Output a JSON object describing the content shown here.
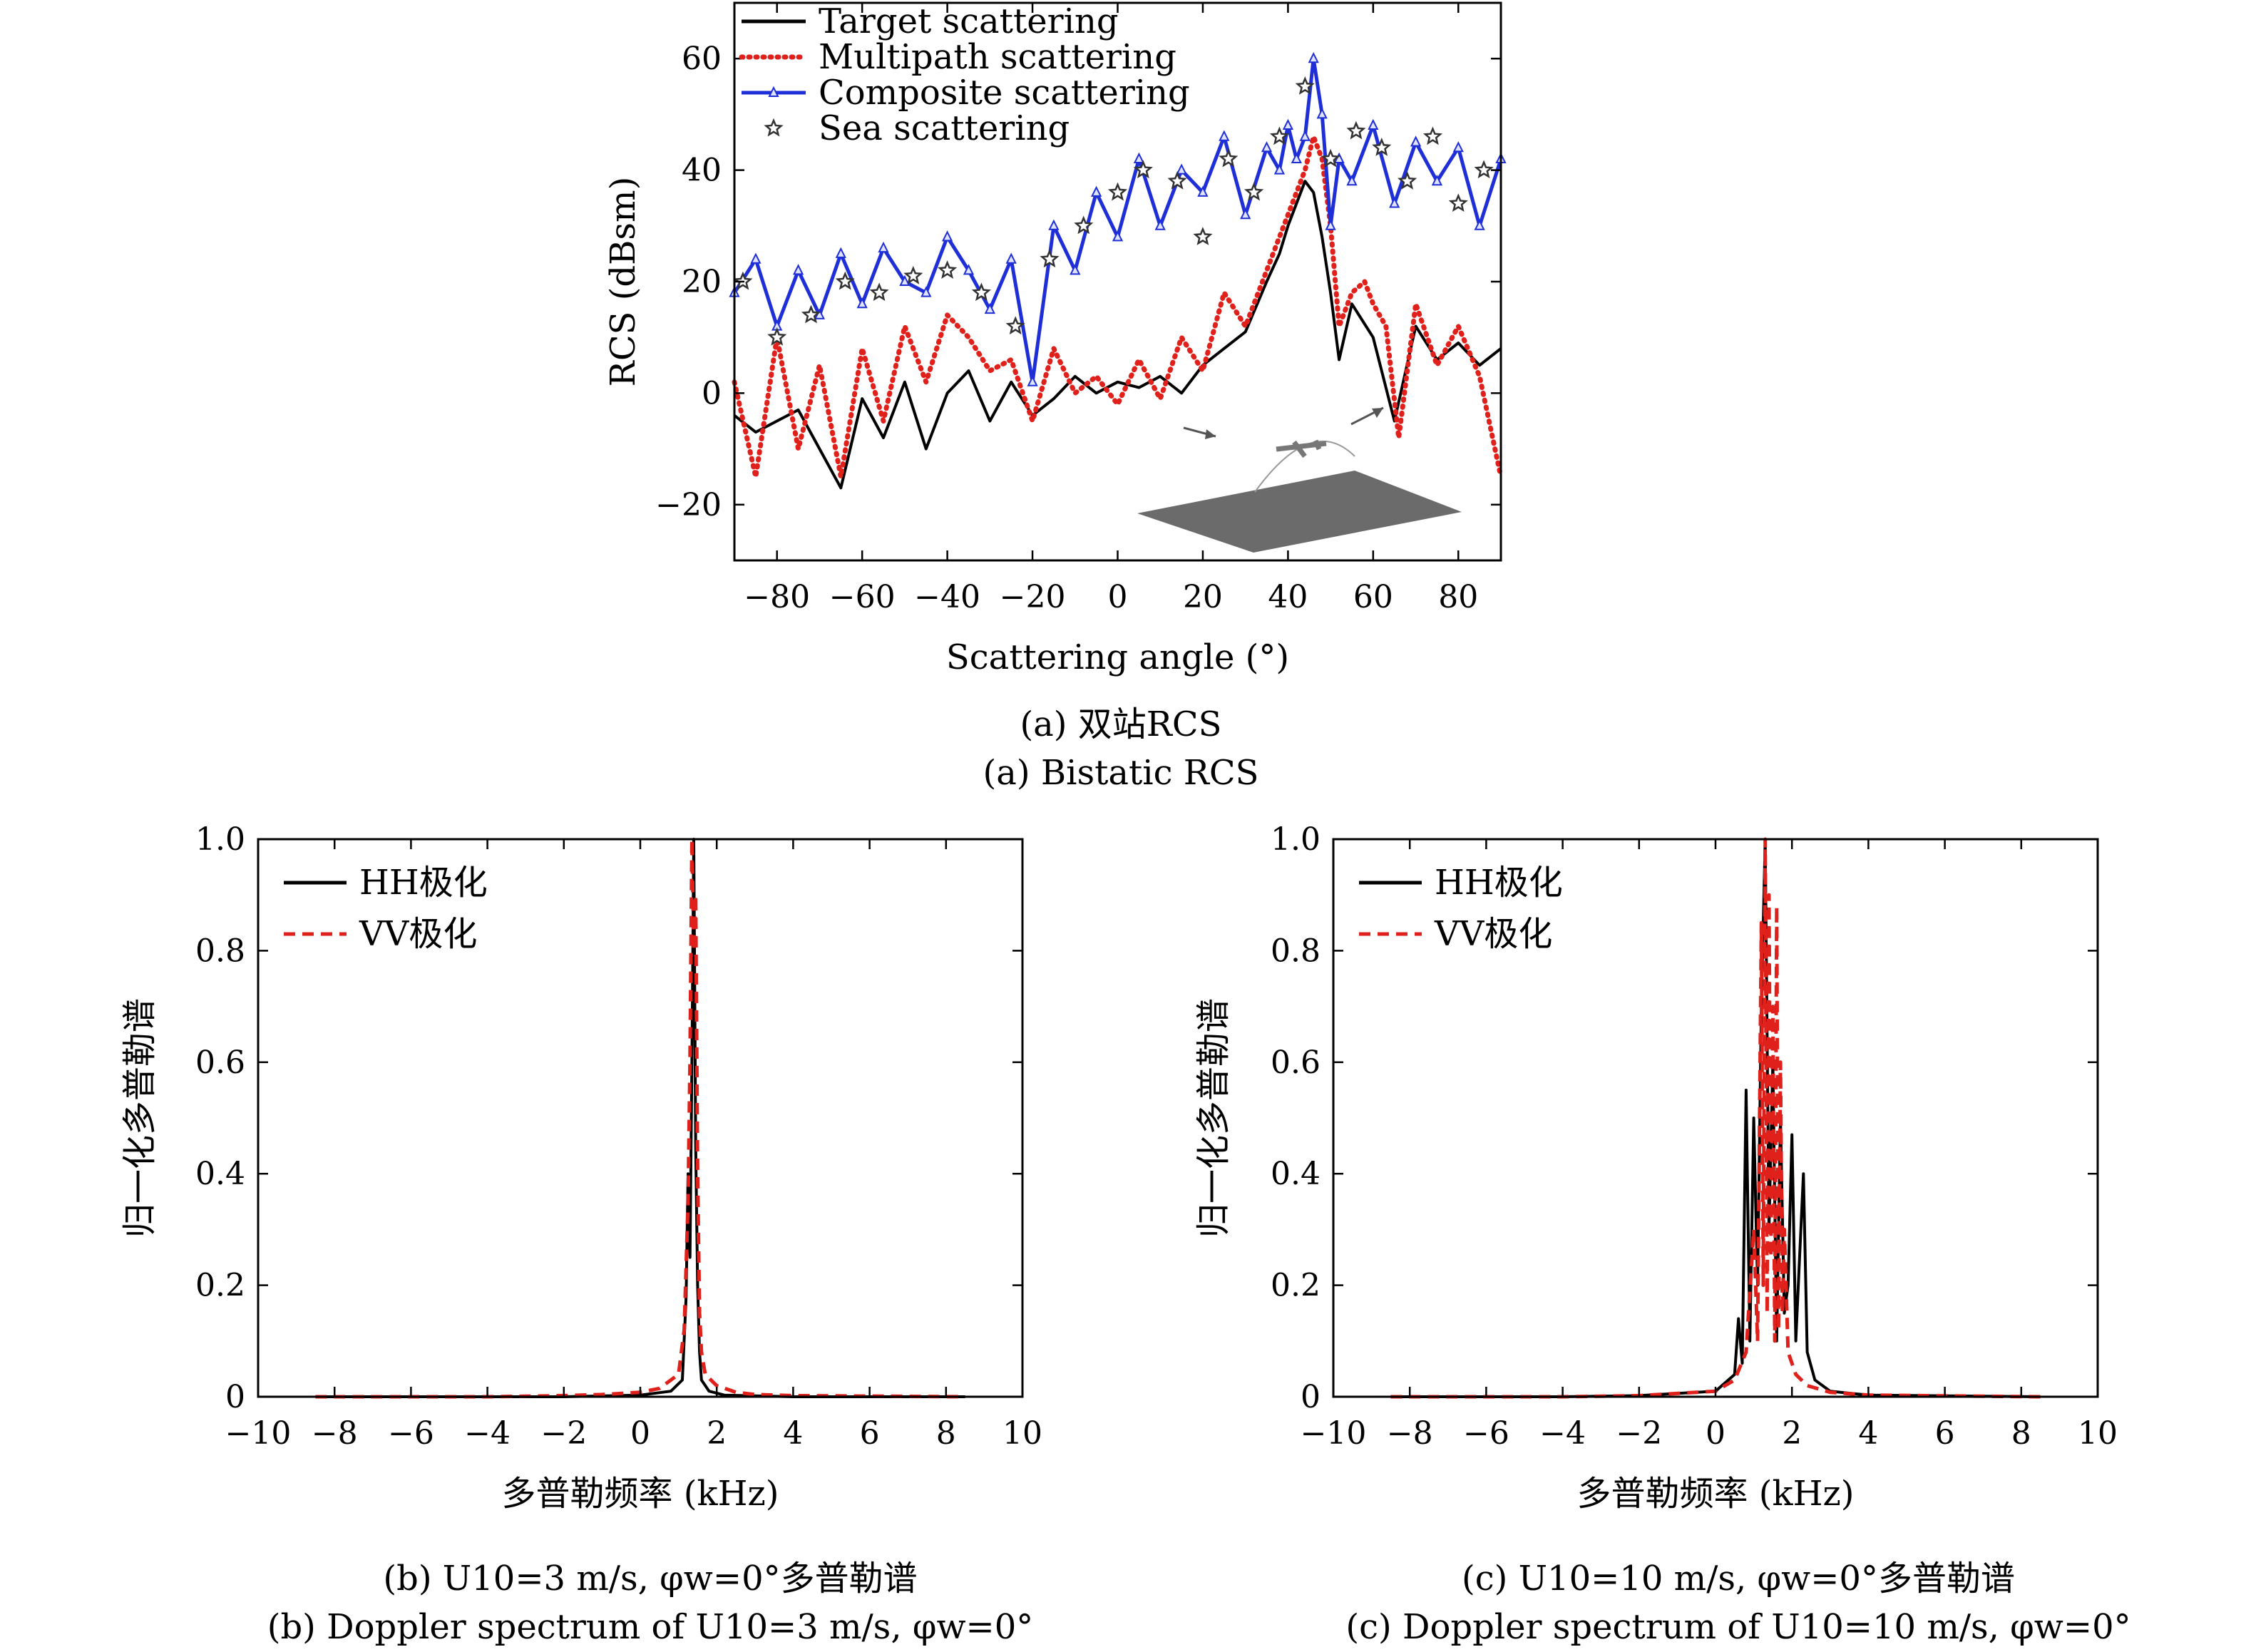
{
  "figure": {
    "captions": {
      "a_cn": "(a) 双站RCS",
      "a_en": "(a) Bistatic RCS",
      "b_cn": "(b) U10=3 m/s, φw=0°多普勒谱",
      "b_en": "(b) Doppler spectrum of U10=3 m/s, φw=0°",
      "c_cn": "(c) U10=10 m/s, φw=0°多普勒谱",
      "c_en": "(c) Doppler spectrum of U10=10 m/s, φw=0°"
    }
  },
  "chart_data": [
    {
      "id": "a",
      "type": "line",
      "xlabel": "Scattering angle (°)",
      "ylabel": "RCS (dBsm)",
      "xlim": [
        -90,
        90
      ],
      "ylim": [
        -30,
        70
      ],
      "xticks": [
        -80,
        -60,
        -40,
        -20,
        0,
        20,
        40,
        60,
        80
      ],
      "yticks": [
        -20,
        0,
        20,
        40,
        60
      ],
      "xtick_labels": [
        "−80",
        "−60",
        "−40",
        "−20",
        "0",
        "20",
        "40",
        "60",
        "80"
      ],
      "ytick_labels": [
        "−20",
        "0",
        "20",
        "40",
        "60"
      ],
      "legend_position": "top-left",
      "inset": "aircraft above sea surface with incident and scattered arrows",
      "series": [
        {
          "name": "Target scattering",
          "color": "#000000",
          "style": "solid",
          "x": [
            -90,
            -85,
            -80,
            -75,
            -70,
            -65,
            -60,
            -55,
            -50,
            -45,
            -40,
            -35,
            -30,
            -25,
            -20,
            -15,
            -10,
            -5,
            0,
            5,
            10,
            15,
            20,
            25,
            30,
            35,
            38,
            40,
            42,
            44,
            46,
            48,
            50,
            52,
            55,
            60,
            65,
            70,
            75,
            80,
            85,
            90
          ],
          "y": [
            -4,
            -7,
            -5,
            -3,
            -10,
            -17,
            -1,
            -8,
            2,
            -10,
            0,
            4,
            -5,
            2,
            -4,
            -1,
            3,
            0,
            2,
            1,
            3,
            0,
            5,
            8,
            11,
            20,
            25,
            30,
            34,
            38,
            36,
            28,
            18,
            6,
            16,
            10,
            -5,
            12,
            6,
            9,
            5,
            8
          ]
        },
        {
          "name": "Multipath scattering",
          "color": "#e0201b",
          "style": "dotted",
          "x": [
            -90,
            -85,
            -80,
            -75,
            -70,
            -65,
            -60,
            -55,
            -50,
            -45,
            -40,
            -35,
            -30,
            -25,
            -20,
            -15,
            -10,
            -5,
            0,
            5,
            10,
            15,
            20,
            25,
            30,
            35,
            38,
            40,
            42,
            44,
            46,
            48,
            50,
            52,
            55,
            58,
            60,
            63,
            66,
            70,
            75,
            80,
            85,
            90
          ],
          "y": [
            2,
            -15,
            10,
            -10,
            5,
            -15,
            8,
            -5,
            12,
            2,
            14,
            10,
            4,
            6,
            -5,
            8,
            0,
            3,
            -2,
            6,
            -1,
            10,
            4,
            18,
            12,
            22,
            28,
            32,
            36,
            40,
            46,
            42,
            30,
            12,
            18,
            20,
            16,
            12,
            -8,
            16,
            5,
            12,
            3,
            -15
          ]
        },
        {
          "name": "Composite scattering",
          "color": "#1f2fd8",
          "style": "solid-marker",
          "x": [
            -90,
            -85,
            -80,
            -75,
            -70,
            -65,
            -60,
            -55,
            -50,
            -45,
            -40,
            -35,
            -30,
            -25,
            -20,
            -15,
            -10,
            -5,
            0,
            5,
            10,
            15,
            20,
            25,
            30,
            35,
            38,
            40,
            42,
            44,
            46,
            48,
            50,
            52,
            55,
            60,
            65,
            70,
            75,
            80,
            85,
            90
          ],
          "y": [
            18,
            24,
            12,
            22,
            14,
            25,
            16,
            26,
            20,
            18,
            28,
            22,
            15,
            24,
            2,
            30,
            22,
            36,
            28,
            42,
            30,
            40,
            36,
            46,
            32,
            44,
            40,
            48,
            42,
            46,
            60,
            50,
            30,
            42,
            38,
            48,
            34,
            45,
            38,
            44,
            30,
            42
          ]
        },
        {
          "name": "Sea scattering",
          "color": "#333333",
          "style": "star-marker",
          "x": [
            -88,
            -80,
            -72,
            -64,
            -56,
            -48,
            -40,
            -32,
            -24,
            -16,
            -8,
            0,
            6,
            14,
            20,
            26,
            32,
            38,
            44,
            50,
            56,
            62,
            68,
            74,
            80,
            86
          ],
          "y": [
            20,
            10,
            14,
            20,
            18,
            21,
            22,
            18,
            12,
            24,
            30,
            36,
            40,
            38,
            28,
            42,
            36,
            46,
            55,
            42,
            47,
            44,
            38,
            46,
            34,
            40
          ]
        }
      ]
    },
    {
      "id": "b",
      "type": "line",
      "xlabel": "多普勒频率 (kHz)",
      "ylabel": "归一化多普勒谱",
      "xlim": [
        -10,
        10
      ],
      "ylim": [
        0,
        1.0
      ],
      "xticks": [
        -10,
        -8,
        -6,
        -4,
        -2,
        0,
        2,
        4,
        6,
        8,
        10
      ],
      "yticks": [
        0,
        0.2,
        0.4,
        0.6,
        0.8,
        1.0
      ],
      "xtick_labels": [
        "−10",
        "−8",
        "−6",
        "−4",
        "−2",
        "0",
        "2",
        "4",
        "6",
        "8",
        "10"
      ],
      "ytick_labels": [
        "0",
        "0.2",
        "0.4",
        "0.6",
        "0.8",
        "1.0"
      ],
      "legend_position": "top-left",
      "series": [
        {
          "name": "HH极化",
          "color": "#000000",
          "style": "solid",
          "x": [
            -8.5,
            -4,
            -2,
            0,
            0.8,
            1.1,
            1.2,
            1.25,
            1.3,
            1.35,
            1.4,
            1.45,
            1.5,
            1.55,
            1.6,
            1.8,
            2.2,
            4,
            8.5
          ],
          "y": [
            0,
            0,
            0,
            0.003,
            0.01,
            0.03,
            0.18,
            0.4,
            0.25,
            0.6,
            1.0,
            0.45,
            0.2,
            0.08,
            0.03,
            0.01,
            0.003,
            0,
            0
          ]
        },
        {
          "name": "VV极化",
          "color": "#e0201b",
          "style": "dashed",
          "x": [
            -8.5,
            -4,
            -2,
            -1,
            0,
            0.5,
            1.0,
            1.15,
            1.25,
            1.3,
            1.35,
            1.4,
            1.45,
            1.5,
            1.55,
            1.6,
            1.7,
            2.0,
            2.5,
            3,
            4,
            8.5
          ],
          "y": [
            0,
            0,
            0.002,
            0.004,
            0.008,
            0.015,
            0.04,
            0.12,
            0.35,
            0.6,
            1.0,
            0.8,
            0.9,
            0.4,
            0.15,
            0.08,
            0.04,
            0.02,
            0.008,
            0.004,
            0.002,
            0
          ]
        }
      ]
    },
    {
      "id": "c",
      "type": "line",
      "xlabel": "多普勒频率 (kHz)",
      "ylabel": "归一化多普勒谱",
      "xlim": [
        -10,
        10
      ],
      "ylim": [
        0,
        1.0
      ],
      "xticks": [
        -10,
        -8,
        -6,
        -4,
        -2,
        0,
        2,
        4,
        6,
        8,
        10
      ],
      "yticks": [
        0,
        0.2,
        0.4,
        0.6,
        0.8,
        1.0
      ],
      "xtick_labels": [
        "−10",
        "−8",
        "−6",
        "−4",
        "−2",
        "0",
        "2",
        "4",
        "6",
        "8",
        "10"
      ],
      "ytick_labels": [
        "0",
        "0.2",
        "0.4",
        "0.6",
        "0.8",
        "1.0"
      ],
      "legend_position": "top-left",
      "series": [
        {
          "name": "HH极化",
          "color": "#000000",
          "style": "solid",
          "x": [
            -8.5,
            -4,
            -2,
            0,
            0.5,
            0.6,
            0.7,
            0.8,
            0.9,
            1.0,
            1.1,
            1.2,
            1.3,
            1.4,
            1.5,
            1.6,
            1.7,
            1.8,
            1.9,
            2.0,
            2.1,
            2.2,
            2.3,
            2.4,
            2.6,
            3,
            4,
            8.5
          ],
          "y": [
            0,
            0,
            0.002,
            0.01,
            0.04,
            0.14,
            0.06,
            0.55,
            0.1,
            0.5,
            0.2,
            0.7,
            1.0,
            0.3,
            0.6,
            0.1,
            0.5,
            0.15,
            0.2,
            0.47,
            0.1,
            0.25,
            0.4,
            0.08,
            0.03,
            0.01,
            0.003,
            0
          ]
        },
        {
          "name": "VV极化",
          "color": "#e0201b",
          "style": "dashed",
          "x": [
            -8.5,
            -4,
            -2,
            0,
            0.5,
            0.8,
            1.0,
            1.1,
            1.2,
            1.25,
            1.3,
            1.35,
            1.4,
            1.45,
            1.5,
            1.55,
            1.6,
            1.65,
            1.7,
            1.75,
            1.8,
            1.9,
            2.1,
            2.4,
            3,
            4,
            8.5
          ],
          "y": [
            0,
            0,
            0.002,
            0.01,
            0.03,
            0.08,
            0.3,
            0.1,
            0.85,
            0.2,
            1.0,
            0.15,
            0.9,
            0.25,
            0.7,
            0.1,
            0.88,
            0.12,
            0.6,
            0.15,
            0.3,
            0.08,
            0.04,
            0.02,
            0.008,
            0.003,
            0
          ]
        }
      ]
    }
  ]
}
